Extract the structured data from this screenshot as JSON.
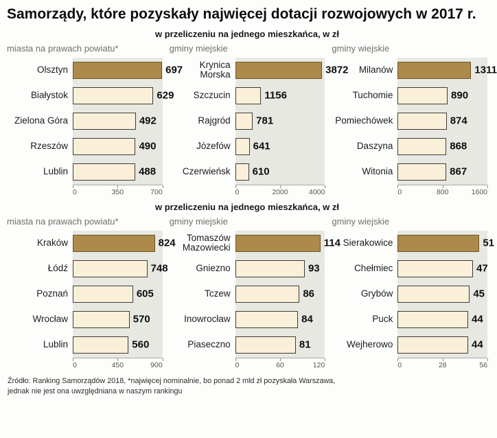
{
  "title": "Samorządy, które pozyskały najwięcej dotacji rozwojowych w 2017 r.",
  "footer": {
    "line1": "Źródło: Ranking Samorządów 2018, *najwięcej nominalnie, bo ponad 2 mld zł pozyskała Warszawa,",
    "line2": "jednak nie jest ona uwzględniana w naszym rankingu"
  },
  "colors": {
    "highlight_bar": "#ab8a4c",
    "bar_fill": "#faf0da",
    "panel_bg": "#e8e8e3"
  },
  "sections": [
    {
      "subtitle": "w przeliczeniu na jednego mieszkańca, w zł",
      "charts": [
        0,
        1,
        2
      ]
    },
    {
      "subtitle": "w przeliczeniu na jednego mieszkańca, w zł",
      "charts": [
        3,
        4,
        5
      ]
    }
  ],
  "chart_data": [
    {
      "type": "bar",
      "orientation": "horizontal",
      "title": "miasta na prawach powiatu*",
      "categories": [
        "Olsztyn",
        "Białystok",
        "Zielona Góra",
        "Rzeszów",
        "Lublin"
      ],
      "values": [
        697,
        629,
        492,
        490,
        488
      ],
      "xlim": [
        0,
        700
      ],
      "xticks": [
        0,
        350,
        700
      ],
      "highlight_index": 0
    },
    {
      "type": "bar",
      "orientation": "horizontal",
      "title": "gminy miejskie",
      "categories": [
        "Krynica Morska",
        "Szczucin",
        "Rajgród",
        "Józefów",
        "Czerwieńsk"
      ],
      "values": [
        3872,
        1156,
        781,
        641,
        610
      ],
      "xlim": [
        0,
        4000
      ],
      "xticks": [
        0,
        2000,
        4000
      ],
      "highlight_index": 0
    },
    {
      "type": "bar",
      "orientation": "horizontal",
      "title": "gminy wiejskie",
      "categories": [
        "Milanów",
        "Tuchomie",
        "Pomiechówek",
        "Daszyna",
        "Witonia"
      ],
      "values": [
        1311,
        890,
        874,
        868,
        867
      ],
      "xlim": [
        0,
        1600
      ],
      "xticks": [
        0,
        800,
        1600
      ],
      "highlight_index": 0
    },
    {
      "type": "bar",
      "orientation": "horizontal",
      "title": "miasta na prawach powiatu*",
      "categories": [
        "Kraków",
        "Łódź",
        "Poznań",
        "Wrocław",
        "Lublin"
      ],
      "values": [
        824,
        748,
        605,
        570,
        560
      ],
      "xlim": [
        0,
        900
      ],
      "xticks": [
        0,
        450,
        900
      ],
      "highlight_index": 0
    },
    {
      "type": "bar",
      "orientation": "horizontal",
      "title": "gminy miejskie",
      "categories": [
        "Tomaszów Mazowiecki",
        "Gniezno",
        "Tczew",
        "Inowrocław",
        "Piaseczno"
      ],
      "values": [
        114,
        93,
        86,
        84,
        81
      ],
      "xlim": [
        0,
        120
      ],
      "xticks": [
        0,
        60,
        120
      ],
      "highlight_index": 0
    },
    {
      "type": "bar",
      "orientation": "horizontal",
      "title": "gminy wiejskie",
      "categories": [
        "Sierakowice",
        "Chełmiec",
        "Grybów",
        "Puck",
        "Wejherowo"
      ],
      "values": [
        51,
        47,
        45,
        44,
        44
      ],
      "xlim": [
        0,
        56
      ],
      "xticks": [
        0,
        28,
        56
      ],
      "highlight_index": 0
    }
  ]
}
